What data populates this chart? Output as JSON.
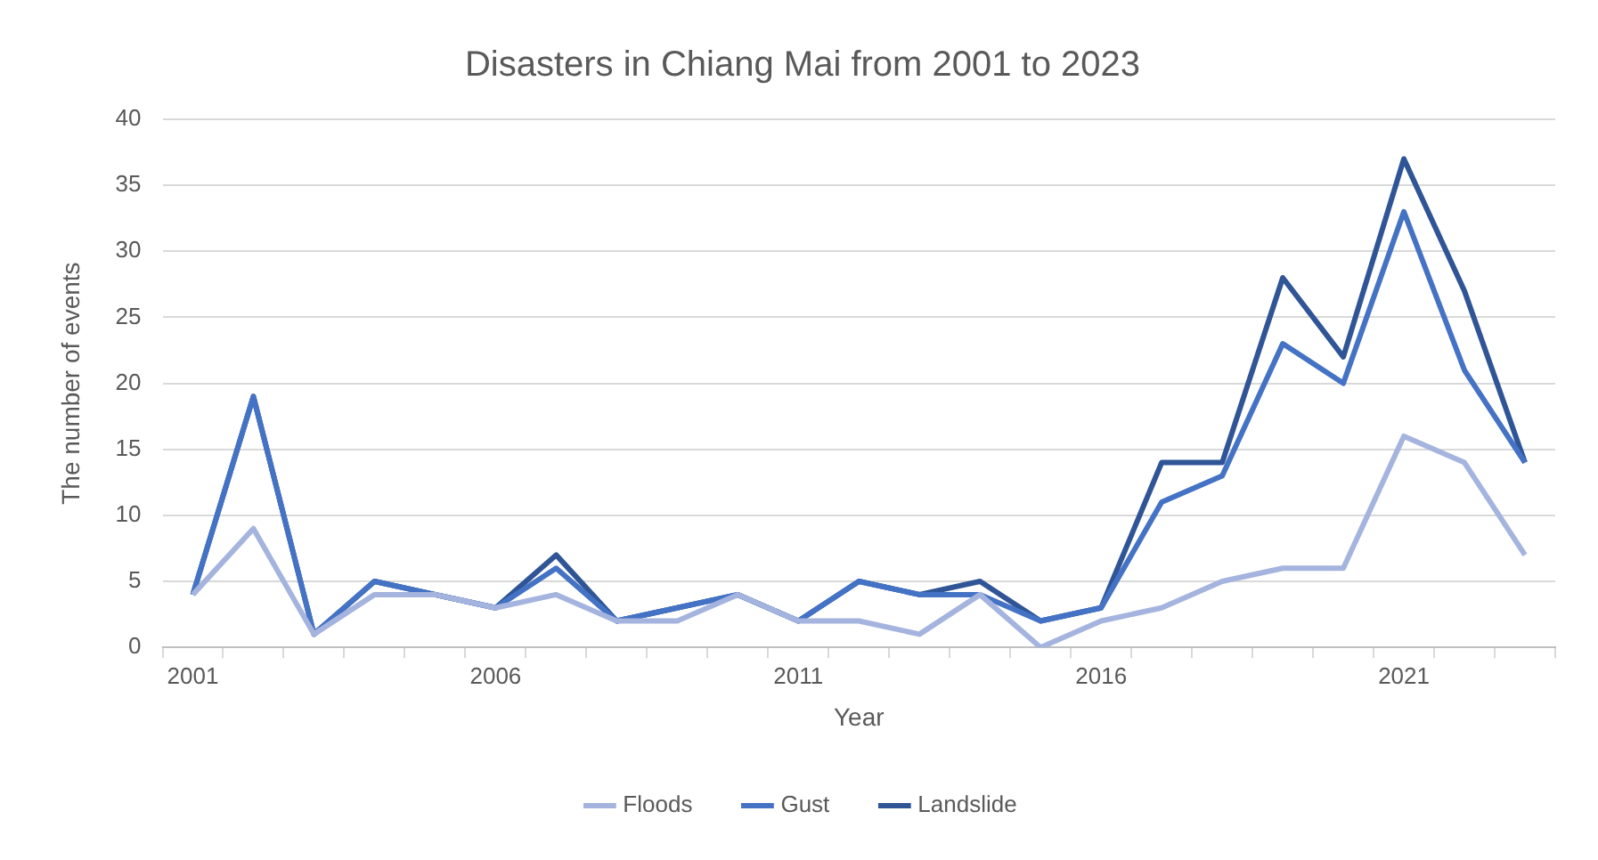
{
  "chart_data": {
    "type": "line",
    "title": "Disasters in Chiang Mai from 2001 to 2023",
    "xlabel": "Year",
    "ylabel": "The number of events",
    "categories": [
      "2001",
      null,
      null,
      null,
      null,
      "2006",
      null,
      null,
      null,
      null,
      "2011",
      null,
      null,
      null,
      null,
      "2016",
      null,
      null,
      null,
      null,
      "2021",
      null,
      null
    ],
    "series": [
      {
        "name": "Floods",
        "color": "#a5b4de",
        "values": [
          4,
          9,
          1,
          4,
          4,
          3,
          4,
          2,
          2,
          4,
          2,
          2,
          1,
          4,
          0,
          2,
          3,
          5,
          6,
          6,
          16,
          14,
          7
        ]
      },
      {
        "name": "Gust",
        "color": "#4472c4",
        "values": [
          4,
          19,
          1,
          5,
          4,
          3,
          6,
          2,
          3,
          4,
          2,
          5,
          4,
          4,
          2,
          3,
          11,
          13,
          23,
          20,
          33,
          21,
          14
        ]
      },
      {
        "name": "Landslide",
        "color": "#2f5597",
        "values": [
          4,
          19,
          1,
          5,
          4,
          3,
          7,
          2,
          3,
          4,
          2,
          5,
          4,
          5,
          2,
          3,
          14,
          14,
          28,
          22,
          37,
          27,
          14
        ]
      }
    ],
    "ylim": [
      0,
      40
    ],
    "yticks": [
      0,
      5,
      10,
      15,
      20,
      25,
      30,
      35,
      40
    ],
    "grid": "y",
    "legend": "bottom",
    "marker": "none",
    "line_style": "solid"
  }
}
